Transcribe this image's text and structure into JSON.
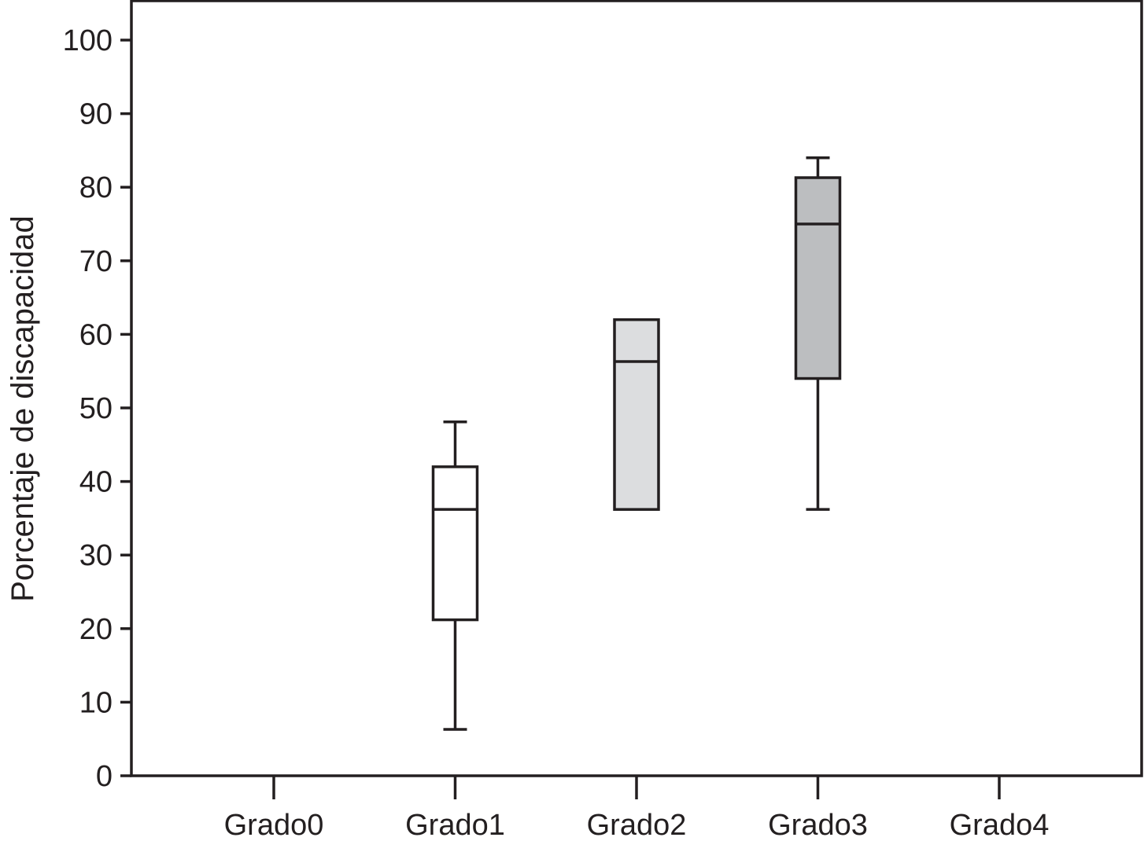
{
  "chart_data": {
    "type": "boxplot",
    "title": "",
    "xlabel": "",
    "ylabel": "Porcentaje de discapacidad",
    "ylim": [
      0,
      105
    ],
    "yticks": [
      0,
      10,
      20,
      30,
      40,
      50,
      60,
      70,
      80,
      90,
      100
    ],
    "categories": [
      "Grado0",
      "Grado1",
      "Grado2",
      "Grado3",
      "Grado4"
    ],
    "grid": false,
    "legend": "none",
    "boxes": [
      {
        "category": "Grado1",
        "whisker_low": 6.3,
        "q1": 21.2,
        "median": 36.2,
        "q3": 42.0,
        "whisker_high": 48.1,
        "fill": "#ffffff"
      },
      {
        "category": "Grado2",
        "whisker_low": null,
        "q1": 36.2,
        "median": 56.3,
        "q3": 62.0,
        "whisker_high": null,
        "fill": "#dcdddf"
      },
      {
        "category": "Grado3",
        "whisker_low": 36.2,
        "q1": 54.0,
        "median": 75.0,
        "q3": 81.3,
        "whisker_high": 84.0,
        "fill": "#bcbec0"
      }
    ]
  }
}
